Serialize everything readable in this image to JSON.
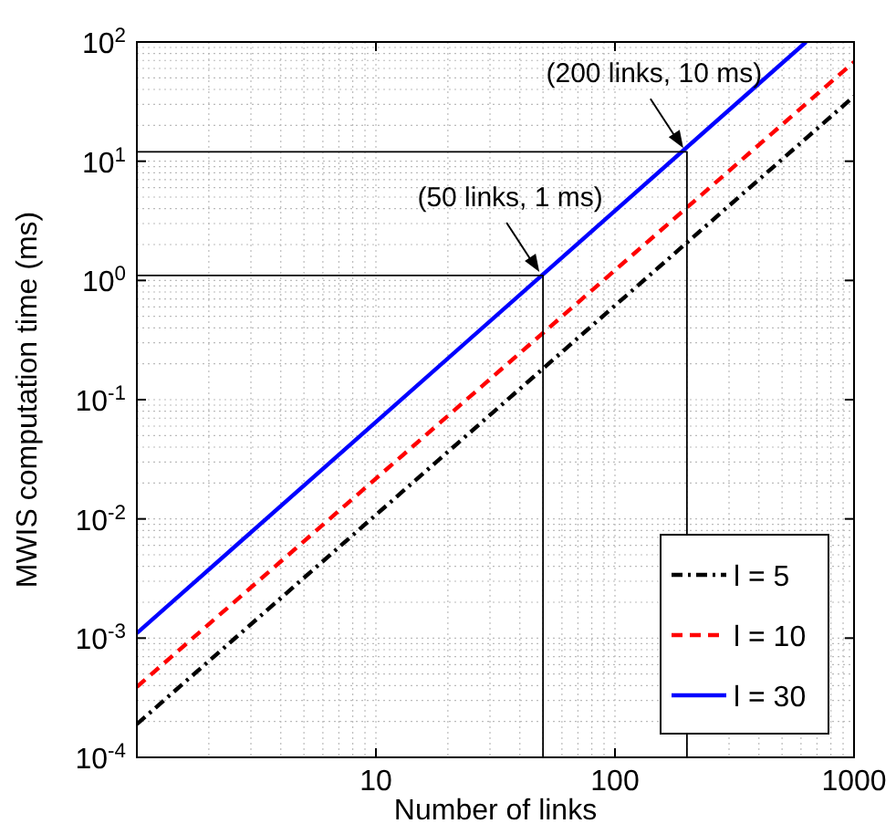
{
  "chart_data": {
    "type": "line",
    "xlabel": "Number of links",
    "ylabel": "MWIS computation time (ms)",
    "log": "xy",
    "grid": true,
    "legend": "bottom right",
    "xlim": [
      1,
      1000
    ],
    "ylim": [
      0.0001,
      100
    ],
    "xticks": [
      10,
      100,
      1000
    ],
    "yticks": [
      {
        "value": 0.0001,
        "label": "10$^{-4}$"
      },
      {
        "value": 0.001,
        "label": "10$^{-3}$"
      },
      {
        "value": 0.01,
        "label": "10$^{-2}$"
      },
      {
        "value": 0.1,
        "label": "10$^{-1}$"
      },
      {
        "value": 1,
        "label": "10$^{0}$"
      },
      {
        "value": 10,
        "label": "10$^{1}$"
      },
      {
        "value": 100,
        "label": "10$^{2}$"
      }
    ],
    "series": [
      {
        "name": "l = 5",
        "color": "#000000",
        "line_style": "dashdot",
        "x": [
          1,
          1000
        ],
        "values": [
          0.00019,
          35
        ]
      },
      {
        "name": "l = 10",
        "color": "#ff0000",
        "line_style": "dashed",
        "x": [
          1,
          1000
        ],
        "values": [
          0.00039,
          68
        ]
      },
      {
        "name": "l = 30",
        "color": "#0000ff",
        "line_style": "solid",
        "x": [
          1,
          630
        ],
        "values": [
          0.0011,
          100
        ]
      },
      {
        "color": "#000000",
        "line_style": "solid",
        "x": [
          1,
          50,
          50
        ],
        "values": [
          1.1,
          1.1,
          0.0001
        ]
      },
      {
        "color": "#000000",
        "line_style": "solid",
        "x": [
          1,
          200,
          200
        ],
        "values": [
          12,
          12,
          0.0001
        ]
      }
    ],
    "annotations": [
      {
        "text": "(50 links, 1 ms)",
        "x": 50,
        "y": 1.1
      },
      {
        "text": "(200 links, 10 ms)",
        "x": 200,
        "y": 12
      }
    ]
  }
}
